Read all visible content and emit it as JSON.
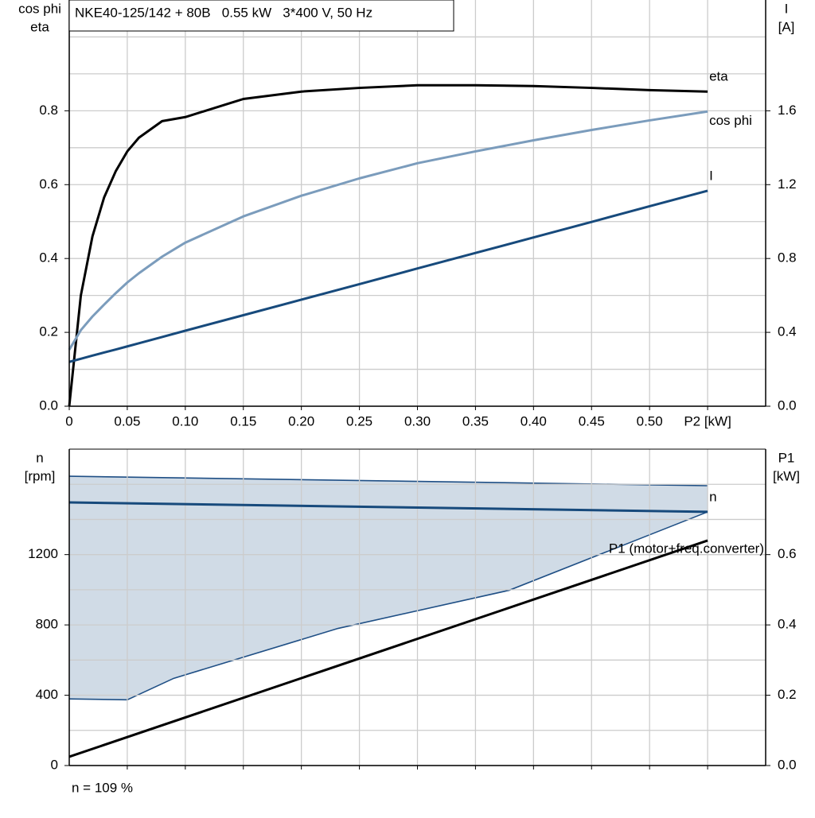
{
  "chart_data": [
    {
      "type": "line",
      "title": "NKE40-125/142 + 80B   0.55 kW   3*400 V, 50 Hz",
      "y_label": [
        "cos phi",
        "eta"
      ],
      "y2_label": [
        "I",
        "[A]"
      ],
      "x": [
        0,
        0.01,
        0.02,
        0.03,
        0.04,
        0.05,
        0.06,
        0.08,
        0.1,
        0.15,
        0.2,
        0.25,
        0.3,
        0.35,
        0.4,
        0.45,
        0.5,
        0.55
      ],
      "series": [
        {
          "name": "eta",
          "color": "#000000",
          "values": [
            0,
            0.3,
            0.46,
            0.565,
            0.636,
            0.69,
            0.727,
            0.772,
            0.783,
            0.832,
            0.852,
            0.862,
            0.869,
            0.869,
            0.867,
            0.862,
            0.856,
            0.852
          ]
        },
        {
          "name": "cos phi",
          "color": "#7b9cbc",
          "values": [
            0.153,
            0.206,
            0.243,
            0.275,
            0.306,
            0.335,
            0.36,
            0.405,
            0.443,
            0.514,
            0.57,
            0.617,
            0.658,
            0.69,
            0.72,
            0.748,
            0.774,
            0.798
          ]
        },
        {
          "name": "I",
          "color": "#174a7c",
          "axis": "y2",
          "values": [
            0.24,
            0.257,
            0.274,
            0.291,
            0.307,
            0.324,
            0.341,
            0.375,
            0.409,
            0.493,
            0.577,
            0.661,
            0.746,
            0.83,
            0.914,
            0.998,
            1.083,
            1.167
          ]
        }
      ],
      "xlim": [
        0,
        0.6
      ],
      "xticks": [
        0,
        0.05,
        {
          "value": 0.1,
          "label": "0.10"
        },
        0.15,
        {
          "value": 0.2,
          "label": "0.20"
        },
        0.25,
        {
          "value": 0.3,
          "label": "0.30"
        },
        0.35,
        {
          "value": 0.4,
          "label": "0.40"
        },
        0.45,
        {
          "value": 0.5,
          "label": "0.50"
        },
        {
          "value": 0.55,
          "label": "P2 [kW]"
        }
      ],
      "show_xtick_labels": true,
      "ylim": [
        0,
        1.1
      ],
      "yticks": [
        {
          "value": 0,
          "label": "0.0"
        },
        0.2,
        0.4,
        0.6,
        0.8
      ],
      "y_minor_ticks": [
        0.1,
        0.3,
        0.5,
        0.7,
        0.9,
        1
      ],
      "y2lim": [
        0,
        2.2
      ],
      "y2ticks": [
        {
          "value": 0,
          "label": "0.0"
        },
        0.4,
        0.8,
        1.2,
        1.6
      ],
      "grid": true
    },
    {
      "type": "line",
      "y_label": [
        "n",
        "[rpm]"
      ],
      "y2_label": [
        "P1",
        "[kW]"
      ],
      "band": {
        "color": "#d0dbe6",
        "edge_color": "#1f4f85",
        "x_lower": [
          0,
          0.05,
          0.09,
          0.2315,
          0.379,
          0.55
        ],
        "lower": [
          379,
          374,
          496,
          780,
          997,
          1443
        ],
        "x_upper": [
          0.55,
          0
        ],
        "upper": [
          1592,
          1646
        ]
      },
      "series": [
        {
          "name": "n",
          "color": "#174a7c",
          "x": [
            0,
            0.55
          ],
          "values": [
            1497,
            1443
          ]
        },
        {
          "name": "P1 (motor+freq.converter)",
          "color": "#000000",
          "axis": "y2",
          "x": [
            0,
            0.55
          ],
          "values": [
            0.025,
            0.64
          ]
        }
      ],
      "xlim": [
        0,
        0.6
      ],
      "xticks": [
        0.05,
        0.1,
        0.15,
        0.2,
        0.25,
        0.3,
        0.35,
        0.4,
        0.45,
        0.5,
        0.55
      ],
      "show_xtick_labels": false,
      "ylim": [
        0,
        1800
      ],
      "yticks": [
        0,
        400,
        800,
        1200
      ],
      "y_minor_ticks": [
        200,
        600,
        1000,
        1400,
        1600
      ],
      "y2lim": [
        0,
        0.9
      ],
      "y2ticks": [
        {
          "value": 0,
          "label": "0.0"
        },
        0.2,
        0.4,
        0.6
      ],
      "grid": true,
      "note": "n = 109 %"
    }
  ]
}
